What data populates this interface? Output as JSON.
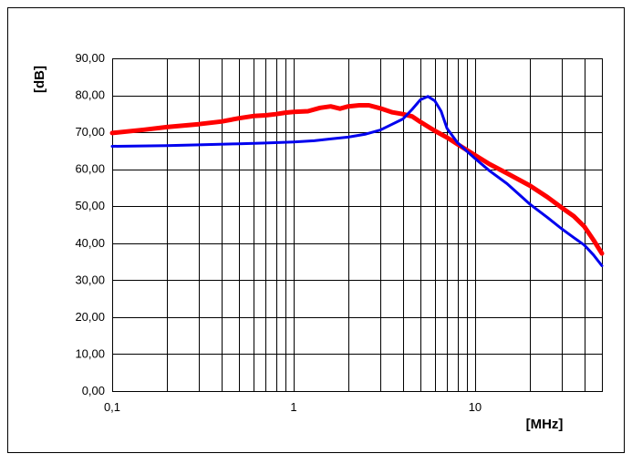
{
  "chart_data": {
    "type": "line",
    "title": "",
    "xlabel": "[MHz]",
    "ylabel": "[dB]",
    "x_scale": "log",
    "xlim": [
      0.1,
      50
    ],
    "ylim": [
      0,
      90
    ],
    "grid": true,
    "legend": "none",
    "x_tick_labels": [
      {
        "value": 0.1,
        "label": "0,1"
      },
      {
        "value": 1,
        "label": "1"
      },
      {
        "value": 10,
        "label": "10"
      }
    ],
    "y_tick_labels": [
      {
        "value": 0,
        "label": "0,00"
      },
      {
        "value": 10,
        "label": "10,00"
      },
      {
        "value": 20,
        "label": "20,00"
      },
      {
        "value": 30,
        "label": "30,00"
      },
      {
        "value": 40,
        "label": "40,00"
      },
      {
        "value": 50,
        "label": "50,00"
      },
      {
        "value": 60,
        "label": "60,00"
      },
      {
        "value": 70,
        "label": "70,00"
      },
      {
        "value": 80,
        "label": "80,00"
      },
      {
        "value": 90,
        "label": "90,00"
      }
    ],
    "series": [
      {
        "color": "#ff0000",
        "points": [
          [
            0.1,
            69.8
          ],
          [
            0.15,
            70.7
          ],
          [
            0.2,
            71.4
          ],
          [
            0.3,
            72.2
          ],
          [
            0.4,
            72.9
          ],
          [
            0.5,
            73.8
          ],
          [
            0.6,
            74.4
          ],
          [
            0.7,
            74.6
          ],
          [
            0.8,
            74.9
          ],
          [
            0.9,
            75.3
          ],
          [
            1.0,
            75.5
          ],
          [
            1.2,
            75.7
          ],
          [
            1.4,
            76.6
          ],
          [
            1.6,
            77.0
          ],
          [
            1.8,
            76.4
          ],
          [
            2.0,
            77.0
          ],
          [
            2.3,
            77.3
          ],
          [
            2.6,
            77.3
          ],
          [
            3.0,
            76.5
          ],
          [
            3.5,
            75.4
          ],
          [
            4.0,
            74.9
          ],
          [
            4.5,
            74.3
          ],
          [
            5.0,
            72.8
          ],
          [
            6.0,
            70.4
          ],
          [
            7.0,
            68.6
          ],
          [
            8.0,
            66.8
          ],
          [
            10,
            63.8
          ],
          [
            12,
            61.4
          ],
          [
            15,
            58.9
          ],
          [
            20,
            55.6
          ],
          [
            25,
            52.5
          ],
          [
            30,
            49.6
          ],
          [
            35,
            47.3
          ],
          [
            40,
            44.5
          ],
          [
            45,
            40.8
          ],
          [
            50,
            37.2
          ]
        ]
      },
      {
        "color": "#0000ee",
        "points": [
          [
            0.1,
            66.2
          ],
          [
            0.2,
            66.4
          ],
          [
            0.3,
            66.6
          ],
          [
            0.5,
            66.9
          ],
          [
            0.7,
            67.1
          ],
          [
            1.0,
            67.4
          ],
          [
            1.3,
            67.7
          ],
          [
            1.6,
            68.2
          ],
          [
            2.0,
            68.7
          ],
          [
            2.5,
            69.5
          ],
          [
            3.0,
            70.6
          ],
          [
            3.5,
            72.2
          ],
          [
            4.0,
            73.6
          ],
          [
            4.5,
            76.2
          ],
          [
            5.0,
            78.8
          ],
          [
            5.5,
            79.7
          ],
          [
            6.0,
            78.5
          ],
          [
            6.5,
            75.7
          ],
          [
            7.0,
            71.1
          ],
          [
            8.0,
            67.2
          ],
          [
            9.0,
            64.9
          ],
          [
            10,
            62.9
          ],
          [
            12,
            59.6
          ],
          [
            15,
            56.1
          ],
          [
            20,
            50.6
          ],
          [
            25,
            47.0
          ],
          [
            30,
            43.9
          ],
          [
            35,
            41.5
          ],
          [
            40,
            39.5
          ],
          [
            45,
            36.8
          ],
          [
            50,
            33.9
          ]
        ]
      }
    ]
  }
}
